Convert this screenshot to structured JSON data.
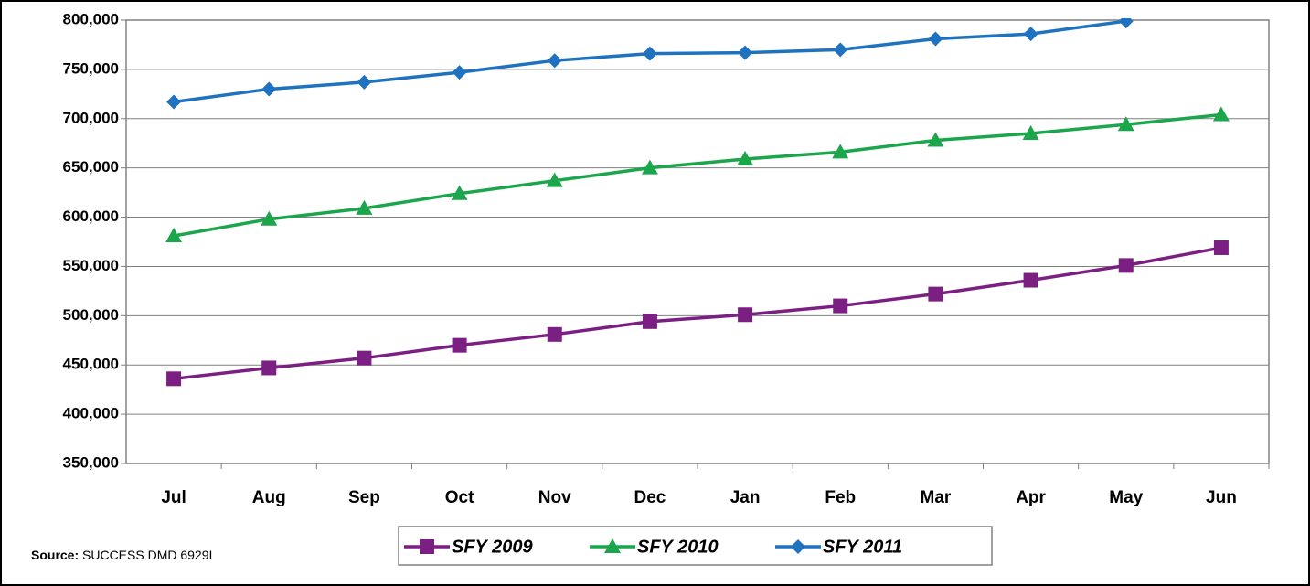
{
  "chart_data": {
    "type": "line",
    "categories": [
      "Jul",
      "Aug",
      "Sep",
      "Oct",
      "Nov",
      "Dec",
      "Jan",
      "Feb",
      "Mar",
      "Apr",
      "May",
      "Jun"
    ],
    "series": [
      {
        "name": "SFY 2009",
        "color": "#7b1f82",
        "marker": "square",
        "values": [
          436000,
          447000,
          457000,
          470000,
          481000,
          494000,
          501000,
          510000,
          522000,
          536000,
          551000,
          569000
        ]
      },
      {
        "name": "SFY 2010",
        "color": "#1ca64c",
        "marker": "triangle",
        "values": [
          581000,
          598000,
          609000,
          624000,
          637000,
          650000,
          659000,
          666000,
          678000,
          685000,
          694000,
          704000
        ]
      },
      {
        "name": "SFY 2011",
        "color": "#1f72bf",
        "marker": "diamond",
        "values": [
          717000,
          730000,
          737000,
          747000,
          759000,
          766000,
          767000,
          770000,
          781000,
          786000,
          799000,
          null
        ]
      }
    ],
    "ylim": [
      350000,
      800000
    ],
    "yticks": [
      {
        "value": 350000,
        "label": "350,000"
      },
      {
        "value": 400000,
        "label": "400,000"
      },
      {
        "value": 450000,
        "label": "450,000"
      },
      {
        "value": 500000,
        "label": "500,000"
      },
      {
        "value": 550000,
        "label": "550,000"
      },
      {
        "value": 600000,
        "label": "600,000"
      },
      {
        "value": 650000,
        "label": "650,000"
      },
      {
        "value": 700000,
        "label": "700,000"
      },
      {
        "value": 750000,
        "label": "750,000"
      },
      {
        "value": 800000,
        "label": "800,000"
      }
    ],
    "grid": true,
    "legend": "bottom",
    "source_label": "Source:",
    "source_text": "SUCCESS DMD 6929I"
  }
}
